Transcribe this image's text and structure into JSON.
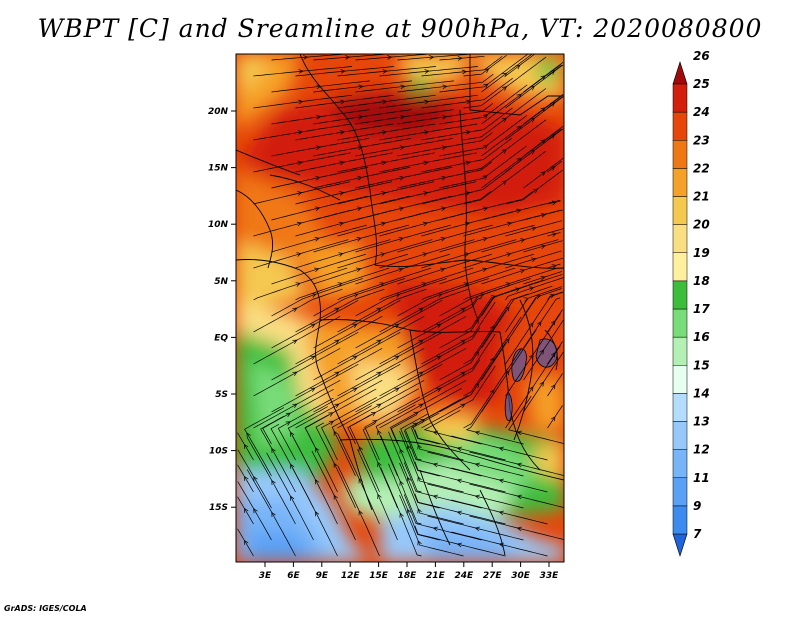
{
  "title": "WBPT [C] and Sreamline at 900hPa, VT: 2020080800",
  "credit": "GrADS: IGES/COLA",
  "map": {
    "lon_labels": [
      "3E",
      "6E",
      "9E",
      "12E",
      "15E",
      "18E",
      "21E",
      "24E",
      "27E",
      "30E",
      "33E"
    ],
    "lat_labels": [
      "20N",
      "15N",
      "10N",
      "5N",
      "EQ",
      "5S",
      "10S",
      "15S"
    ]
  },
  "colorbar": {
    "labels": [
      "7",
      "9",
      "11",
      "12",
      "13",
      "14",
      "15",
      "16",
      "17",
      "18",
      "19",
      "20",
      "21",
      "22",
      "23",
      "24",
      "25",
      "26"
    ],
    "colors": [
      "#1e64dc",
      "#3c8cf0",
      "#5aa0f5",
      "#78b4f8",
      "#96c8fa",
      "#b4dcfc",
      "#e6fff0",
      "#b4f0b4",
      "#78dc78",
      "#3cbe3c",
      "#fff0a0",
      "#fade82",
      "#f5c850",
      "#f5a028",
      "#f07814",
      "#e6460a",
      "#d21e0a",
      "#a00a0a"
    ]
  }
}
